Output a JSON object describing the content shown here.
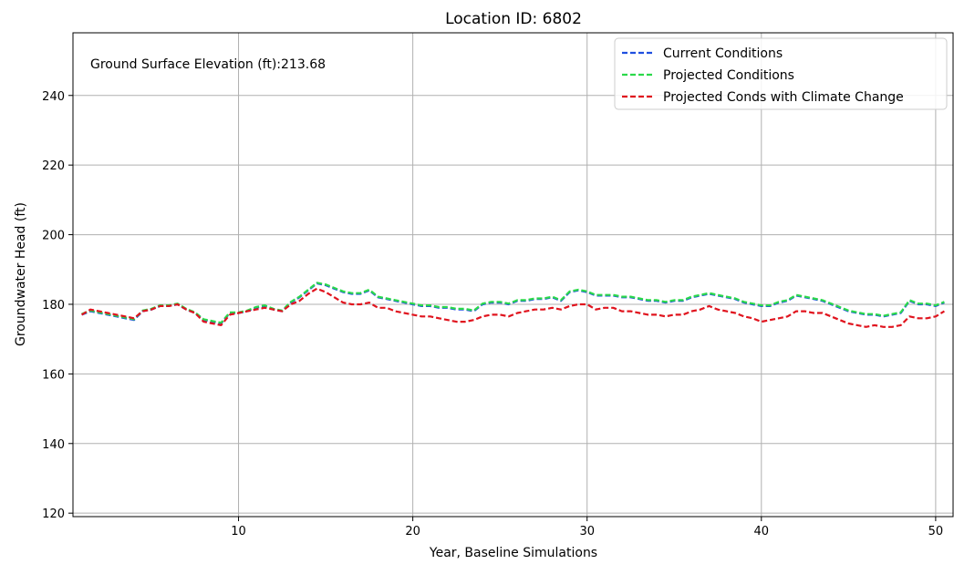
{
  "chart_data": {
    "type": "line",
    "title": "Location ID: 6802",
    "xlabel": "Year, Baseline Simulations",
    "ylabel": "Groundwater Head (ft)",
    "xlim": [
      0.5,
      51
    ],
    "ylim": [
      119,
      258
    ],
    "xticks": [
      10,
      20,
      30,
      40,
      50
    ],
    "yticks": [
      120,
      140,
      160,
      180,
      200,
      220,
      240
    ],
    "grid": true,
    "legend_position": "top-right",
    "annotation": "Ground Surface Elevation (ft):213.68",
    "series": [
      {
        "name": "Current Conditions",
        "color": "#1f4fe0",
        "style": "dashed",
        "x": [
          1,
          1.5,
          2,
          2.5,
          3,
          3.5,
          4,
          4.5,
          5,
          5.5,
          6,
          6.5,
          7,
          7.5,
          8,
          8.5,
          9,
          9.5,
          10,
          10.5,
          11,
          11.5,
          12,
          12.5,
          13,
          13.5,
          14,
          14.5,
          15,
          15.5,
          16,
          16.5,
          17,
          17.5,
          18,
          18.5,
          19,
          19.5,
          20,
          20.5,
          21,
          21.5,
          22,
          22.5,
          23,
          23.5,
          24,
          24.5,
          25,
          25.5,
          26,
          26.5,
          27,
          27.5,
          28,
          28.5,
          29,
          29.5,
          30,
          30.5,
          31,
          31.5,
          32,
          32.5,
          33,
          33.5,
          34,
          34.5,
          35,
          35.5,
          36,
          36.5,
          37,
          37.5,
          38,
          38.5,
          39,
          39.5,
          40,
          40.5,
          41,
          41.5,
          42,
          42.5,
          43,
          43.5,
          44,
          44.5,
          45,
          45.5,
          46,
          46.5,
          47,
          47.5,
          48,
          48.5,
          49,
          49.5,
          50,
          50.5
        ],
        "y": [
          177,
          178,
          177.5,
          177,
          176.5,
          176,
          175.5,
          178,
          178.5,
          179.5,
          179.5,
          180,
          178.5,
          177.5,
          175.5,
          175,
          174.5,
          177.5,
          177.5,
          178,
          179,
          179.5,
          178.5,
          178,
          180.5,
          182,
          184,
          186,
          185.5,
          184.5,
          183.5,
          183,
          183,
          184,
          182,
          181.5,
          181,
          180.5,
          180,
          179.5,
          179.5,
          179,
          179,
          178.5,
          178.5,
          178,
          180,
          180.5,
          180.5,
          180,
          181,
          181,
          181.5,
          181.5,
          182,
          181,
          183.5,
          184,
          183.5,
          182.5,
          182.5,
          182.5,
          182,
          182,
          181.5,
          181,
          181,
          180.5,
          181,
          181,
          182,
          182.5,
          183,
          182.5,
          182,
          181.5,
          180.5,
          180,
          179.5,
          179.5,
          180.5,
          181,
          182.5,
          182,
          181.5,
          181,
          180,
          179,
          178,
          177.5,
          177,
          177,
          176.5,
          177,
          177.5,
          181,
          180,
          180,
          179.5,
          180.5
        ]
      },
      {
        "name": "Projected Conditions",
        "color": "#2bd94a",
        "style": "dashed",
        "x": [
          1,
          1.5,
          2,
          2.5,
          3,
          3.5,
          4,
          4.5,
          5,
          5.5,
          6,
          6.5,
          7,
          7.5,
          8,
          8.5,
          9,
          9.5,
          10,
          10.5,
          11,
          11.5,
          12,
          12.5,
          13,
          13.5,
          14,
          14.5,
          15,
          15.5,
          16,
          16.5,
          17,
          17.5,
          18,
          18.5,
          19,
          19.5,
          20,
          20.5,
          21,
          21.5,
          22,
          22.5,
          23,
          23.5,
          24,
          24.5,
          25,
          25.5,
          26,
          26.5,
          27,
          27.5,
          28,
          28.5,
          29,
          29.5,
          30,
          30.5,
          31,
          31.5,
          32,
          32.5,
          33,
          33.5,
          34,
          34.5,
          35,
          35.5,
          36,
          36.5,
          37,
          37.5,
          38,
          38.5,
          39,
          39.5,
          40,
          40.5,
          41,
          41.5,
          42,
          42.5,
          43,
          43.5,
          44,
          44.5,
          45,
          45.5,
          46,
          46.5,
          47,
          47.5,
          48,
          48.5,
          49,
          49.5,
          50,
          50.5
        ],
        "y": [
          177.2,
          178.2,
          177.7,
          177.2,
          176.7,
          176.2,
          175.7,
          178.2,
          178.7,
          179.7,
          179.7,
          180.2,
          178.7,
          177.7,
          175.7,
          175.2,
          174.7,
          177.7,
          177.7,
          178.2,
          179.2,
          179.7,
          178.7,
          178.2,
          180.7,
          182.2,
          184.2,
          186.2,
          185.7,
          184.7,
          183.7,
          183.2,
          183.2,
          184.2,
          182.2,
          181.7,
          181.2,
          180.7,
          180.2,
          179.7,
          179.7,
          179.2,
          179.2,
          178.7,
          178.7,
          178.2,
          180.2,
          180.7,
          180.7,
          180.2,
          181.2,
          181.2,
          181.7,
          181.7,
          182.2,
          181.2,
          183.7,
          184.2,
          183.7,
          182.7,
          182.7,
          182.7,
          182.2,
          182.2,
          181.7,
          181.2,
          181.2,
          180.7,
          181.2,
          181.2,
          182.2,
          182.7,
          183.2,
          182.7,
          182.2,
          181.7,
          180.7,
          180.2,
          179.7,
          179.7,
          180.7,
          181.2,
          182.7,
          182.2,
          181.7,
          181.2,
          180.2,
          179.2,
          178.2,
          177.7,
          177.2,
          177.2,
          176.7,
          177.2,
          177.7,
          181.2,
          180.2,
          180.2,
          179.7,
          180.7
        ]
      },
      {
        "name": "Projected Conds with Climate Change",
        "color": "#e0141e",
        "style": "dashed",
        "x": [
          1,
          1.5,
          2,
          2.5,
          3,
          3.5,
          4,
          4.5,
          5,
          5.5,
          6,
          6.5,
          7,
          7.5,
          8,
          8.5,
          9,
          9.5,
          10,
          10.5,
          11,
          11.5,
          12,
          12.5,
          13,
          13.5,
          14,
          14.5,
          15,
          15.5,
          16,
          16.5,
          17,
          17.5,
          18,
          18.5,
          19,
          19.5,
          20,
          20.5,
          21,
          21.5,
          22,
          22.5,
          23,
          23.5,
          24,
          24.5,
          25,
          25.5,
          26,
          26.5,
          27,
          27.5,
          28,
          28.5,
          29,
          29.5,
          30,
          30.5,
          31,
          31.5,
          32,
          32.5,
          33,
          33.5,
          34,
          34.5,
          35,
          35.5,
          36,
          36.5,
          37,
          37.5,
          38,
          38.5,
          39,
          39.5,
          40,
          40.5,
          41,
          41.5,
          42,
          42.5,
          43,
          43.5,
          44,
          44.5,
          45,
          45.5,
          46,
          46.5,
          47,
          47.5,
          48,
          48.5,
          49,
          49.5,
          50,
          50.5
        ],
        "y": [
          177,
          178.5,
          178,
          177.5,
          177,
          176.5,
          176,
          178,
          178.5,
          179.5,
          179.5,
          180,
          178.5,
          177.5,
          175,
          174.5,
          174,
          177,
          177.5,
          178,
          178.5,
          179,
          178.5,
          178,
          180,
          181,
          183,
          184.5,
          183.5,
          182,
          180.5,
          180,
          180,
          180.5,
          179,
          179,
          178,
          177.5,
          177,
          176.5,
          176.5,
          176,
          175.5,
          175,
          175,
          175.5,
          176.5,
          177,
          177,
          176.5,
          177.5,
          178,
          178.5,
          178.5,
          179,
          178.5,
          179.5,
          180,
          180,
          178.5,
          179,
          179,
          178,
          178,
          177.5,
          177,
          177,
          176.5,
          177,
          177,
          178,
          178.5,
          179.5,
          178.5,
          178,
          177.5,
          176.5,
          176,
          175,
          175.5,
          176,
          176.5,
          178,
          178,
          177.5,
          177.5,
          176.5,
          175.5,
          174.5,
          174,
          173.5,
          174,
          173.5,
          173.5,
          174,
          176.5,
          176,
          176,
          176.5,
          178
        ]
      }
    ]
  }
}
